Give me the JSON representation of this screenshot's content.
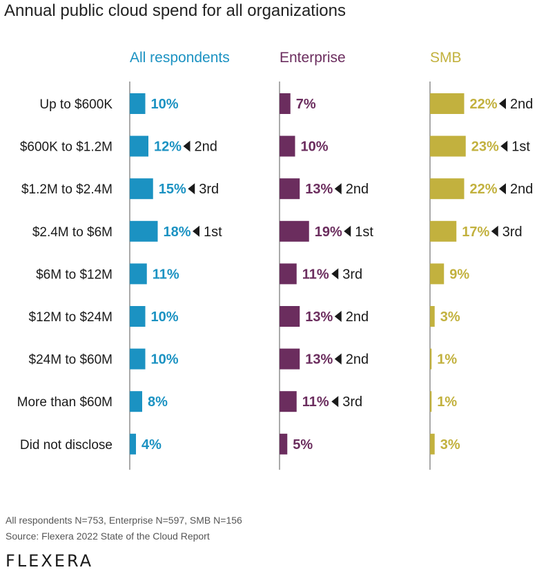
{
  "title": "Annual public cloud spend for all organizations",
  "footnotes": {
    "line1": "All respondents N=753, Enterprise N=597, SMB N=156",
    "line2": "Source: Flexera 2022 State of the Cloud Report"
  },
  "logo": "FLEXERA",
  "chart_data": {
    "type": "bar",
    "orientation": "horizontal",
    "title": "Annual public cloud spend for all organizations",
    "categories": [
      "Up to $600K",
      "$600K to $1.2M",
      "$1.2M to $2.4M",
      "$2.4M to $6M",
      "$6M to $12M",
      "$12M to $24M",
      "$24M to $60M",
      "More than $60M",
      "Did not disclose"
    ],
    "series": [
      {
        "name": "All respondents",
        "color": "#1b92c2",
        "values": [
          10,
          12,
          15,
          18,
          11,
          10,
          10,
          8,
          4
        ],
        "value_labels": [
          "10%",
          "12%",
          "15%",
          "18%",
          "11%",
          "10%",
          "10%",
          "8%",
          "4%"
        ],
        "rank_labels": [
          "",
          "2nd",
          "3rd",
          "1st",
          "",
          "",
          "",
          "",
          ""
        ]
      },
      {
        "name": "Enterprise",
        "color": "#6b2d5e",
        "values": [
          7,
          10,
          13,
          19,
          11,
          13,
          13,
          11,
          5
        ],
        "value_labels": [
          "7%",
          "10%",
          "13%",
          "19%",
          "11%",
          "13%",
          "13%",
          "11%",
          "5%"
        ],
        "rank_labels": [
          "",
          "",
          "2nd",
          "1st",
          "3rd",
          "2nd",
          "2nd",
          "3rd",
          ""
        ]
      },
      {
        "name": "SMB",
        "color": "#c2b13e",
        "values": [
          22,
          23,
          22,
          17,
          9,
          3,
          1,
          1,
          3
        ],
        "value_labels": [
          "22%",
          "23%",
          "22%",
          "17%",
          "9%",
          "3%",
          "1%",
          "1%",
          "3%"
        ],
        "rank_labels": [
          "2nd",
          "1st",
          "2nd",
          "3rd",
          "",
          "",
          "",
          "",
          ""
        ]
      }
    ],
    "unit": "%"
  }
}
